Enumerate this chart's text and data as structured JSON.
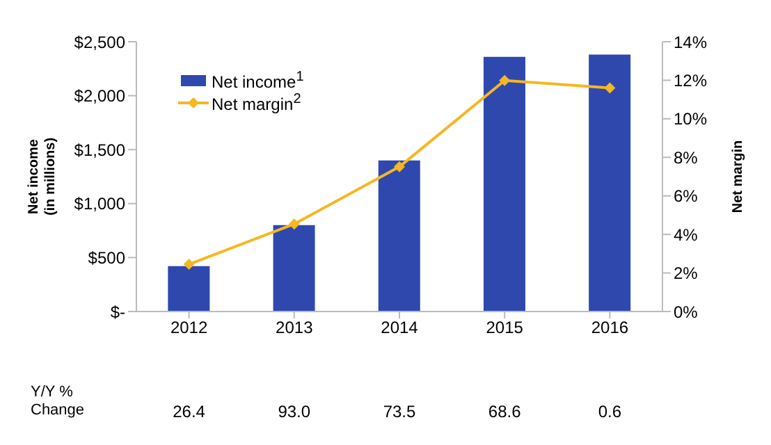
{
  "chart_data": {
    "type": "bar",
    "ylabel": "Net income\n(in millions)",
    "y2label": "Net margin",
    "categories": [
      "2012",
      "2013",
      "2014",
      "2015",
      "2016"
    ],
    "series": [
      {
        "name": "Net income$^{1}$",
        "color": "#2e48ae",
        "values": [
          420,
          800,
          1400,
          2360,
          2380
        ]
      },
      {
        "name": "Net margin$^{2}$",
        "type": "line",
        "axis": "y2",
        "color": "#f5b722",
        "values": [
          2.45,
          4.54,
          7.51,
          11.99,
          11.6
        ]
      }
    ],
    "ylim": [
      0,
      2500
    ],
    "yticks": [
      {
        "value": 0,
        "label": "$-"
      },
      {
        "value": 500,
        "label": "$500"
      },
      {
        "value": 1000,
        "label": "$1,000"
      },
      {
        "value": 1500,
        "label": "$1,500"
      },
      {
        "value": 2000,
        "label": "$2,000"
      },
      {
        "value": 2500,
        "label": "$2,500"
      }
    ],
    "y2lim": [
      0,
      14
    ],
    "y2ticks": [
      {
        "value": 0,
        "label": "0%"
      },
      {
        "value": 2,
        "label": "2%"
      },
      {
        "value": 4,
        "label": "4%"
      },
      {
        "value": 6,
        "label": "6%"
      },
      {
        "value": 8,
        "label": "8%"
      },
      {
        "value": 10,
        "label": "10%"
      },
      {
        "value": 12,
        "label": "12%"
      },
      {
        "value": 14,
        "label": "14%"
      }
    ],
    "marker": "diamond",
    "legend": "top left",
    "grid": false,
    "annotations": [
      "Y/Y %\nChange",
      "26.4",
      "93.0",
      "73.5",
      "68.6",
      "0.6"
    ]
  }
}
